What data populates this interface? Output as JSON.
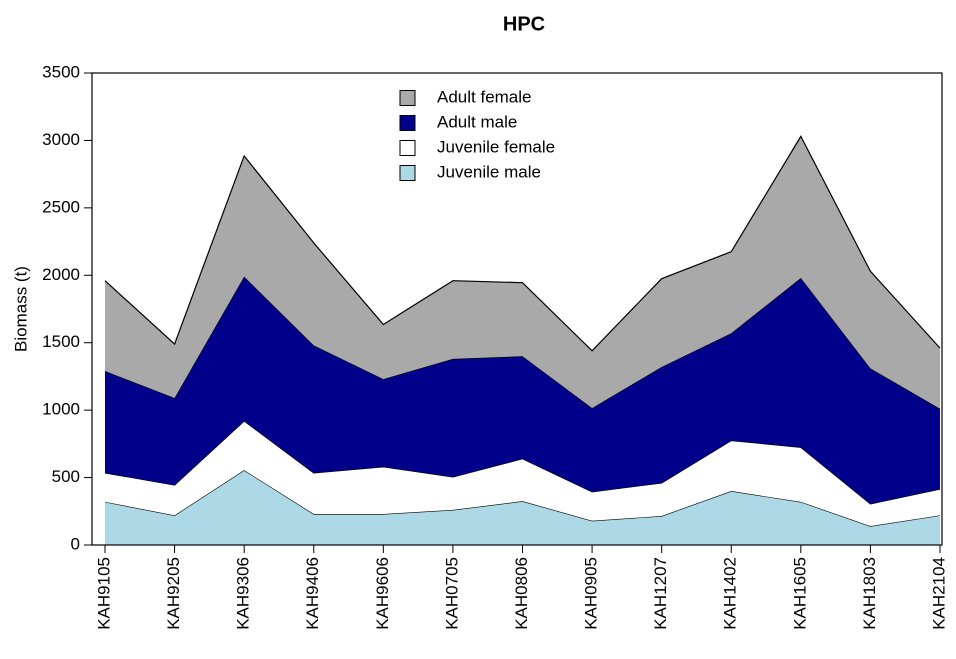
{
  "chart_data": {
    "type": "stacked_area",
    "title": "HPC",
    "y_label": "Biomass (t)",
    "categories": [
      "KAH9105",
      "KAH9205",
      "KAH9306",
      "KAH9406",
      "KAH9606",
      "KAH0705",
      "KAH0806",
      "KAH0905",
      "KAH1207",
      "KAH1402",
      "KAH1605",
      "KAH1803",
      "KAH2104"
    ],
    "series": [
      {
        "name": "Juvenile male",
        "color": "#add8e6",
        "values": [
          320,
          220,
          555,
          230,
          230,
          260,
          325,
          180,
          215,
          400,
          320,
          140,
          220
        ]
      },
      {
        "name": "Juvenile female",
        "color": "#ffffff",
        "values": [
          215,
          225,
          365,
          305,
          350,
          245,
          315,
          215,
          245,
          375,
          405,
          165,
          195
        ]
      },
      {
        "name": "Adult male",
        "color": "#00008b",
        "values": [
          755,
          645,
          1070,
          945,
          650,
          875,
          760,
          620,
          860,
          795,
          1255,
          1005,
          595
        ]
      },
      {
        "name": "Adult female",
        "color": "#a9a9a9",
        "values": [
          670,
          400,
          895,
          760,
          405,
          580,
          545,
          425,
          655,
          605,
          1050,
          720,
          450
        ]
      }
    ],
    "ylim": [
      0,
      3500
    ],
    "yticks": [
      0,
      500,
      1000,
      1500,
      2000,
      2500,
      3000,
      3500
    ],
    "legend": "top"
  }
}
